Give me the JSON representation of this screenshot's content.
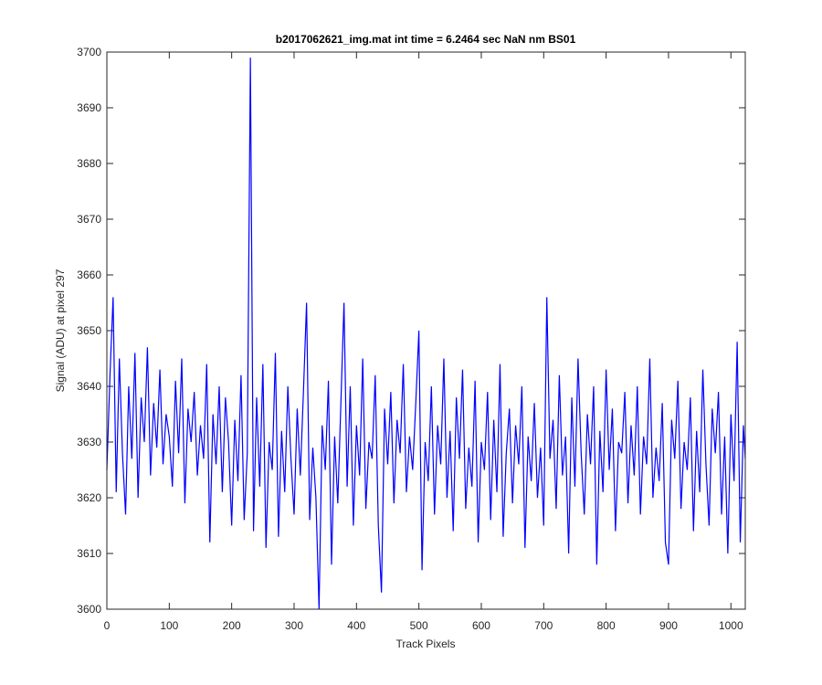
{
  "chart_data": {
    "type": "line",
    "title": "b2017062621_img.mat int time = 6.2464 sec  NaN nm BS01",
    "x_label": "Track Pixels",
    "y_label": "Signal (ADU) at pixel 297",
    "color": "#0000ff",
    "xlim": [
      0,
      1023
    ],
    "ylim": [
      3600,
      3700
    ],
    "xticks": [
      0,
      100,
      200,
      300,
      400,
      500,
      600,
      700,
      800,
      900,
      1000
    ],
    "yticks": [
      3600,
      3610,
      3620,
      3630,
      3640,
      3650,
      3660,
      3670,
      3680,
      3690,
      3700
    ],
    "x": [
      0,
      5,
      10,
      15,
      20,
      25,
      30,
      35,
      40,
      45,
      50,
      55,
      60,
      65,
      70,
      75,
      80,
      85,
      90,
      95,
      100,
      105,
      110,
      115,
      120,
      125,
      130,
      135,
      140,
      145,
      150,
      155,
      160,
      165,
      170,
      175,
      180,
      185,
      190,
      195,
      200,
      205,
      210,
      215,
      220,
      225,
      230,
      235,
      240,
      245,
      250,
      255,
      260,
      265,
      270,
      275,
      280,
      285,
      290,
      295,
      300,
      305,
      310,
      315,
      320,
      325,
      330,
      335,
      340,
      345,
      350,
      355,
      360,
      365,
      370,
      375,
      380,
      385,
      390,
      395,
      400,
      405,
      410,
      415,
      420,
      425,
      430,
      435,
      440,
      445,
      450,
      455,
      460,
      465,
      470,
      475,
      480,
      485,
      490,
      495,
      500,
      505,
      510,
      515,
      520,
      525,
      530,
      535,
      540,
      545,
      550,
      555,
      560,
      565,
      570,
      575,
      580,
      585,
      590,
      595,
      600,
      605,
      610,
      615,
      620,
      625,
      630,
      635,
      640,
      645,
      650,
      655,
      660,
      665,
      670,
      675,
      680,
      685,
      690,
      695,
      700,
      705,
      710,
      715,
      720,
      725,
      730,
      735,
      740,
      745,
      750,
      755,
      760,
      765,
      770,
      775,
      780,
      785,
      790,
      795,
      800,
      805,
      810,
      815,
      820,
      825,
      830,
      835,
      840,
      845,
      850,
      855,
      860,
      865,
      870,
      875,
      880,
      885,
      890,
      895,
      900,
      905,
      910,
      915,
      920,
      925,
      930,
      935,
      940,
      945,
      950,
      955,
      960,
      965,
      970,
      975,
      980,
      985,
      990,
      995,
      1000,
      1005,
      1010,
      1015,
      1020,
      1023
    ],
    "values": [
      3625,
      3642,
      3656,
      3621,
      3645,
      3628,
      3617,
      3640,
      3627,
      3646,
      3620,
      3638,
      3630,
      3647,
      3624,
      3637,
      3629,
      3643,
      3626,
      3635,
      3631,
      3622,
      3641,
      3628,
      3645,
      3619,
      3636,
      3630,
      3639,
      3624,
      3633,
      3627,
      3644,
      3612,
      3635,
      3626,
      3640,
      3621,
      3638,
      3630,
      3615,
      3634,
      3623,
      3642,
      3616,
      3628,
      3699,
      3614,
      3638,
      3622,
      3644,
      3611,
      3630,
      3625,
      3646,
      3613,
      3632,
      3621,
      3640,
      3627,
      3617,
      3636,
      3624,
      3639,
      3655,
      3616,
      3629,
      3620,
      3600,
      3633,
      3625,
      3641,
      3608,
      3631,
      3619,
      3637,
      3655,
      3622,
      3640,
      3615,
      3633,
      3624,
      3645,
      3618,
      3630,
      3627,
      3642,
      3615,
      3603,
      3636,
      3626,
      3639,
      3619,
      3634,
      3628,
      3644,
      3621,
      3631,
      3625,
      3637,
      3650,
      3607,
      3630,
      3623,
      3640,
      3617,
      3633,
      3626,
      3645,
      3620,
      3632,
      3614,
      3638,
      3627,
      3643,
      3618,
      3629,
      3622,
      3641,
      3612,
      3630,
      3625,
      3639,
      3616,
      3634,
      3621,
      3644,
      3613,
      3628,
      3636,
      3619,
      3633,
      3626,
      3640,
      3611,
      3631,
      3623,
      3637,
      3620,
      3629,
      3615,
      3656,
      3627,
      3634,
      3618,
      3642,
      3624,
      3631,
      3610,
      3638,
      3622,
      3645,
      3628,
      3617,
      3635,
      3626,
      3640,
      3608,
      3632,
      3621,
      3643,
      3625,
      3636,
      3614,
      3630,
      3628,
      3639,
      3619,
      3633,
      3624,
      3640,
      3617,
      3631,
      3626,
      3645,
      3620,
      3629,
      3623,
      3637,
      3612,
      3608,
      3634,
      3627,
      3641,
      3618,
      3630,
      3625,
      3638,
      3614,
      3632,
      3621,
      3643,
      3626,
      3615,
      3636,
      3628,
      3639,
      3617,
      3631,
      3610,
      3635,
      3623,
      3648,
      3612,
      3633,
      3627
    ]
  }
}
